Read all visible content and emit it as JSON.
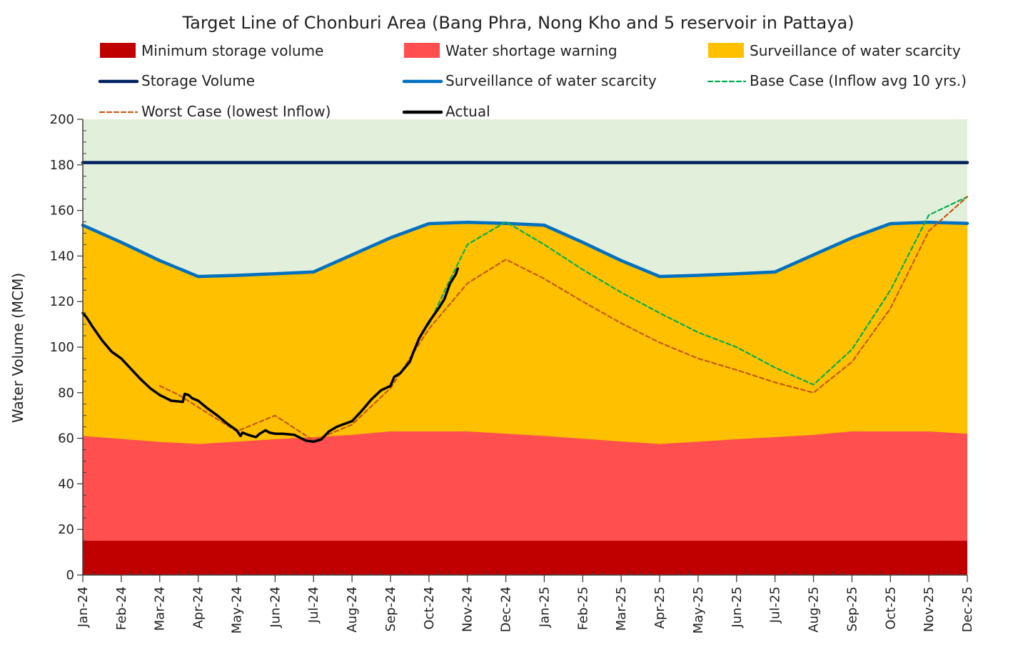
{
  "chart_data": {
    "type": "area",
    "title": "Target Line of Chonburi Area (Bang Phra, Nong Kho and 5 reservoir in Pattaya)",
    "xlabel": "",
    "ylabel": "Water Volume (MCM)",
    "ylim": [
      0,
      200
    ],
    "yticks": [
      0,
      20,
      40,
      60,
      80,
      100,
      120,
      140,
      160,
      180,
      200
    ],
    "grid": false,
    "legend_position": "top",
    "categories": [
      "Jan-24",
      "Feb-24",
      "Mar-24",
      "Apr-24",
      "May-24",
      "Jun-24",
      "Jul-24",
      "Aug-24",
      "Sep-24",
      "Oct-24",
      "Nov-24",
      "Dec-24",
      "Jan-25",
      "Feb-25",
      "Mar-25",
      "Apr-25",
      "May-25",
      "Jun-25",
      "Jul-25",
      "Aug-25",
      "Sep-25",
      "Oct-25",
      "Nov-25",
      "Dec-25"
    ],
    "background_color": "#e2efda",
    "series": [
      {
        "name": "Minimum storage volume",
        "kind": "area",
        "color": "#c00000",
        "values": [
          15,
          15,
          15,
          15,
          15,
          15,
          15,
          15,
          15,
          15,
          15,
          15,
          15,
          15,
          15,
          15,
          15,
          15,
          15,
          15,
          15,
          15,
          15,
          15
        ]
      },
      {
        "name": "Water shortage warning",
        "kind": "area",
        "color": "#ff4f4f",
        "values": [
          61,
          59.7,
          58.4,
          57.5,
          58.5,
          59.6,
          60.5,
          61.5,
          63,
          63,
          63,
          62,
          61,
          59.8,
          58.6,
          57.5,
          58.5,
          59.6,
          60.5,
          61.5,
          63,
          63,
          63,
          62
        ]
      },
      {
        "name": "Surveillance of water scarcity",
        "kind": "area",
        "color": "#ffc000",
        "values": [
          153.5,
          146,
          138,
          131,
          131.5,
          132.2,
          133,
          140.5,
          148,
          154.2,
          154.8,
          154.3,
          153.5,
          146,
          138,
          131,
          131.5,
          132.2,
          133,
          140.5,
          148,
          154.2,
          154.8,
          154.3
        ]
      },
      {
        "name": "Storage Volume",
        "kind": "line",
        "color": "#002060",
        "values": [
          181,
          181,
          181,
          181,
          181,
          181,
          181,
          181,
          181,
          181,
          181,
          181,
          181,
          181,
          181,
          181,
          181,
          181,
          181,
          181,
          181,
          181,
          181,
          181
        ]
      },
      {
        "name": "Surveillance of water scarcity",
        "kind": "line",
        "color": "#0070c0",
        "values": [
          153.5,
          146,
          138,
          131,
          131.5,
          132.2,
          133,
          140.5,
          148,
          154.2,
          154.8,
          154.3,
          153.5,
          146,
          138,
          131,
          131.5,
          132.2,
          133,
          140.5,
          148,
          154.2,
          154.8,
          154.3
        ]
      },
      {
        "name": "Base Case (Inflow avg 10 yrs.)",
        "kind": "dashed",
        "color": "#00b050",
        "x": [
          9,
          9.5,
          10,
          11,
          12,
          13,
          14,
          15,
          16,
          17,
          18,
          19,
          20,
          21,
          22,
          23
        ],
        "values": [
          110,
          128,
          145,
          155,
          145,
          134,
          124,
          115,
          106.5,
          100,
          91,
          83.5,
          99,
          125,
          158,
          166
        ]
      },
      {
        "name": "Worst Case (lowest Inflow)",
        "kind": "dashed",
        "color": "#c55a11",
        "x": [
          2,
          2.5,
          4,
          5,
          6,
          7,
          8,
          9,
          10,
          11,
          12,
          13,
          14,
          15,
          16,
          17,
          18,
          19,
          20,
          21,
          22,
          23
        ],
        "values": [
          83,
          79,
          63,
          70,
          59,
          66,
          82,
          108,
          128,
          138.5,
          130,
          120,
          110.5,
          102,
          95,
          90,
          84.5,
          80,
          93.5,
          117,
          151,
          166
        ]
      },
      {
        "name": "Actual",
        "kind": "line",
        "color": "#000000",
        "x": [
          0,
          0.1,
          0.25,
          0.5,
          0.75,
          1,
          1.25,
          1.5,
          1.75,
          2,
          2.3,
          2.6,
          2.65,
          2.75,
          2.85,
          3,
          3.25,
          3.5,
          3.75,
          4,
          4.1,
          4.15,
          4.3,
          4.5,
          4.6,
          4.75,
          4.85,
          5,
          5.2,
          5.5,
          5.8,
          6,
          6.2,
          6.4,
          6.6,
          6.75,
          7,
          7.25,
          7.5,
          7.75,
          8,
          8.1,
          8.25,
          8.5,
          8.6,
          8.75,
          9,
          9.25,
          9.4,
          9.55,
          9.7,
          9.75
        ],
        "values": [
          115,
          113,
          109,
          103,
          98,
          95,
          90.5,
          86,
          82,
          79,
          76.5,
          76,
          79.5,
          79,
          77.5,
          76.5,
          73,
          70,
          66.5,
          63.5,
          61,
          62.5,
          61.5,
          60.5,
          62,
          63.5,
          62.5,
          62,
          62,
          61.5,
          59,
          58.5,
          59.5,
          63,
          65,
          66,
          67.5,
          72,
          77,
          81,
          83,
          87,
          88.5,
          93.5,
          98,
          104,
          111,
          117,
          121,
          128,
          132,
          134.5
        ]
      }
    ]
  }
}
